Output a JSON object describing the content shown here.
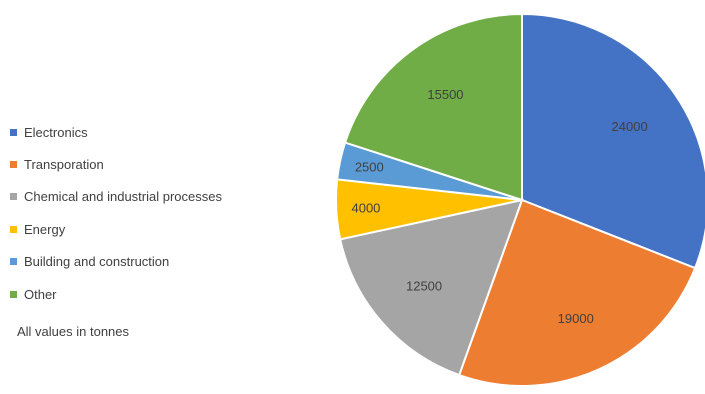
{
  "chart_data": {
    "type": "pie",
    "categories": [
      "Electronics",
      "Transporation",
      "Chemical and industrial processes",
      "Energy",
      "Building and construction",
      "Other"
    ],
    "values": [
      24000,
      19000,
      12500,
      4000,
      2500,
      15500
    ],
    "colors": [
      "#4472C4",
      "#ED7D31",
      "#A5A5A5",
      "#FFC000",
      "#5B9BD5",
      "#70AD47"
    ],
    "legend_position": "left",
    "start_angle_deg": 0,
    "direction": "clockwise",
    "data_labels_shown": true
  },
  "footnote": "All values in tonnes"
}
